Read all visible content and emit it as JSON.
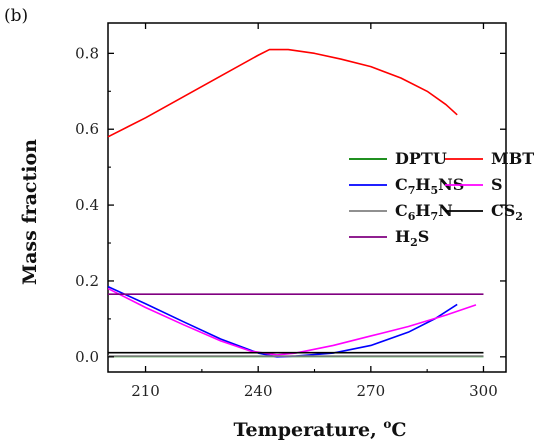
{
  "chart_data": {
    "type": "line",
    "panel_label": "(b)",
    "xlabel_main": "Temperature, ",
    "xlabel_sup": "o",
    "xlabel_unit": "C",
    "ylabel": "Mass fraction",
    "xlim": [
      200,
      306
    ],
    "ylim": [
      -0.04,
      0.88
    ],
    "x_ticks": [
      210,
      240,
      270,
      300
    ],
    "y_ticks": [
      0.0,
      0.2,
      0.4,
      0.6,
      0.8
    ],
    "x_tick_labels": [
      "210",
      "240",
      "270",
      "300"
    ],
    "y_tick_labels": [
      "0.0",
      "0.2",
      "0.4",
      "0.6",
      "0.8"
    ],
    "series": [
      {
        "name": "DPTU",
        "color": "#008000",
        "x": [
          200,
          300
        ],
        "y": [
          0.001,
          0.001
        ]
      },
      {
        "name": "MBT",
        "color": "#ff0000",
        "x": [
          200,
          210,
          220,
          230,
          240,
          243,
          248,
          255,
          262,
          270,
          278,
          285,
          290,
          293
        ],
        "y": [
          0.58,
          0.63,
          0.685,
          0.74,
          0.795,
          0.81,
          0.81,
          0.8,
          0.785,
          0.765,
          0.735,
          0.7,
          0.665,
          0.638
        ]
      },
      {
        "name": "C7H5NS",
        "color": "#0000ff",
        "x": [
          200,
          210,
          220,
          230,
          240,
          245,
          250,
          260,
          270,
          280,
          287,
          293
        ],
        "y": [
          0.185,
          0.14,
          0.093,
          0.047,
          0.01,
          0.0,
          0.002,
          0.01,
          0.03,
          0.065,
          0.1,
          0.138
        ]
      },
      {
        "name": "S",
        "color": "#ff00ff",
        "x": [
          200,
          210,
          220,
          230,
          238,
          245,
          250,
          260,
          270,
          280,
          290,
          298
        ],
        "y": [
          0.18,
          0.13,
          0.085,
          0.042,
          0.015,
          0.005,
          0.01,
          0.03,
          0.055,
          0.08,
          0.11,
          0.137
        ]
      },
      {
        "name": "C6H7N",
        "color": "#808080",
        "x": [
          200,
          300
        ],
        "y": [
          0.002,
          0.002
        ]
      },
      {
        "name": "CS2",
        "color": "#000000",
        "x": [
          200,
          300
        ],
        "y": [
          0.011,
          0.011
        ]
      },
      {
        "name": "H2S",
        "color": "#800080",
        "x": [
          200,
          300
        ],
        "y": [
          0.165,
          0.165
        ]
      }
    ],
    "legend": {
      "placement": "right-middle",
      "entries": [
        {
          "base": "DPTU",
          "parts": [
            [
              "DPTU",
              false
            ]
          ],
          "color": "#008000"
        },
        {
          "base": "MBT",
          "parts": [
            [
              "MBT",
              false
            ]
          ],
          "color": "#ff0000"
        },
        {
          "base": "C7H5NS",
          "parts": [
            [
              "C",
              false
            ],
            [
              "7",
              true
            ],
            [
              "H",
              false
            ],
            [
              "5",
              true
            ],
            [
              "NS",
              false
            ]
          ],
          "color": "#0000ff"
        },
        {
          "base": "S",
          "parts": [
            [
              "S",
              false
            ]
          ],
          "color": "#ff00ff"
        },
        {
          "base": "C6H7N",
          "parts": [
            [
              "C",
              false
            ],
            [
              "6",
              true
            ],
            [
              "H",
              false
            ],
            [
              "7",
              true
            ],
            [
              "N",
              false
            ]
          ],
          "color": "#808080"
        },
        {
          "base": "CS2",
          "parts": [
            [
              "CS",
              false
            ],
            [
              "2",
              true
            ]
          ],
          "color": "#000000"
        },
        {
          "base": "H2S",
          "parts": [
            [
              "H",
              false
            ],
            [
              "2",
              true
            ],
            [
              "S",
              false
            ]
          ],
          "color": "#800080"
        }
      ]
    }
  }
}
